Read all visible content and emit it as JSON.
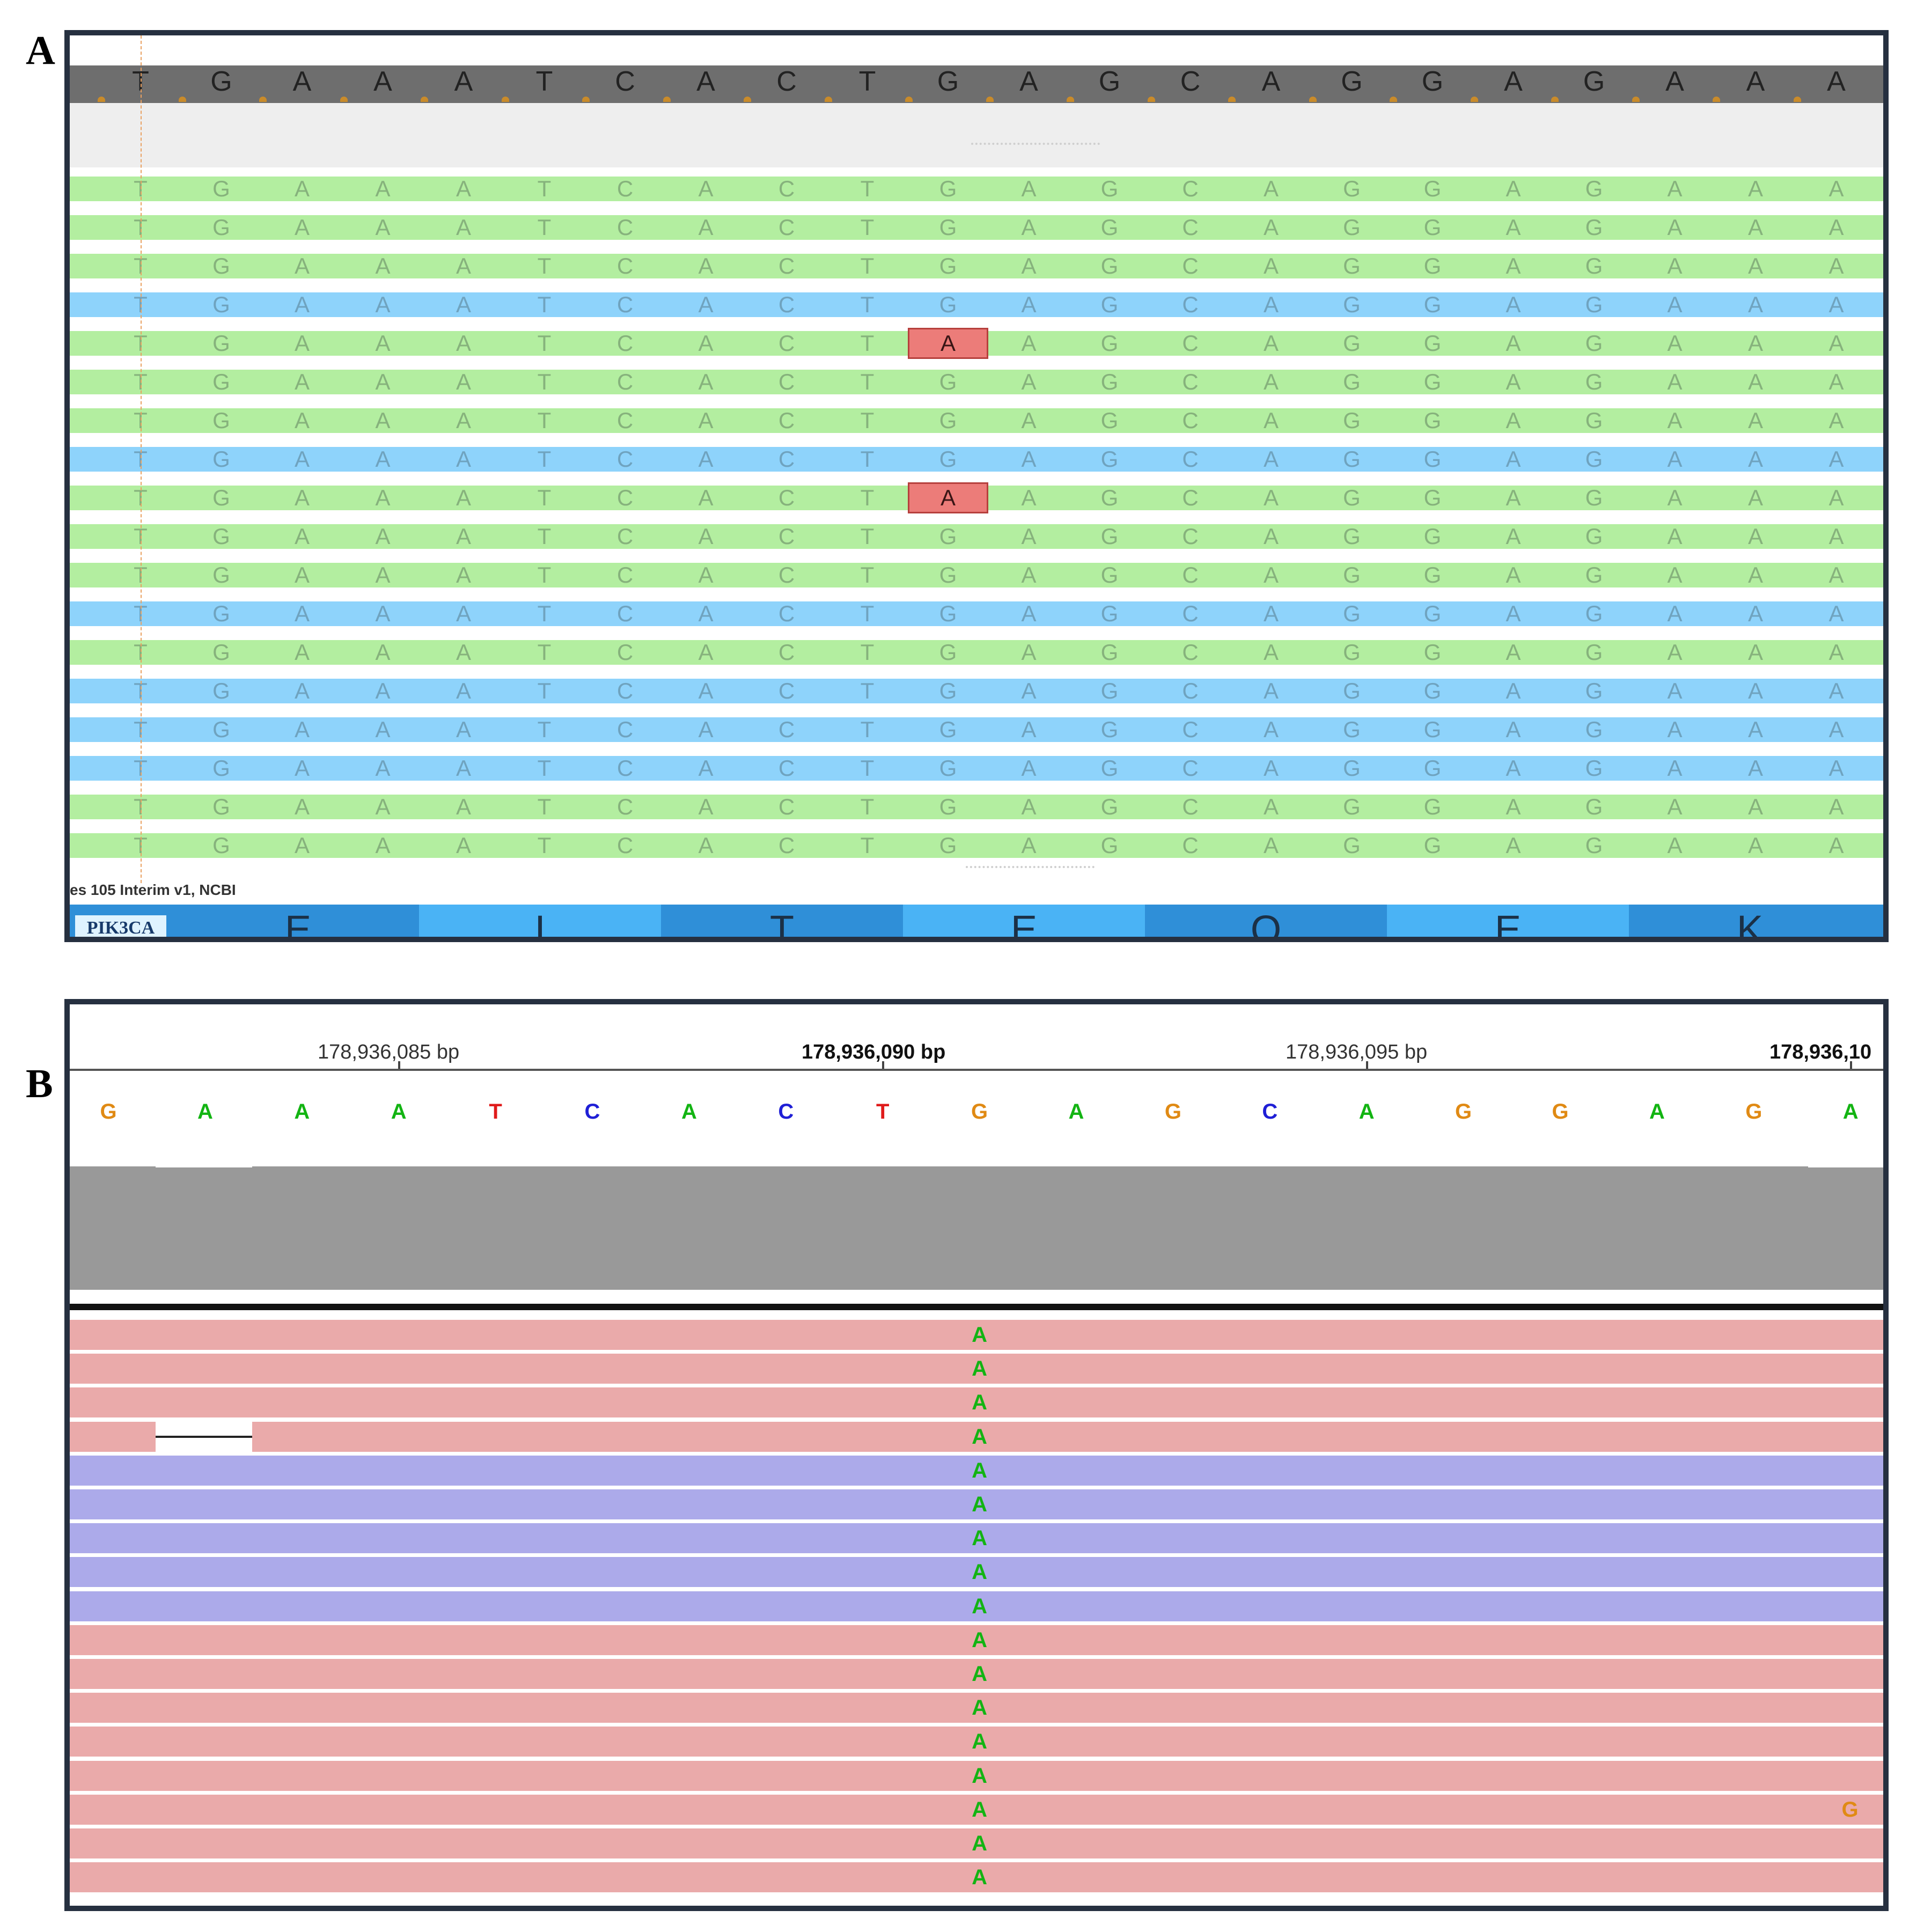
{
  "panel_a": {
    "letter": "A",
    "reference_bases": [
      "T",
      "G",
      "A",
      "A",
      "A",
      "T",
      "C",
      "A",
      "C",
      "T",
      "G",
      "A",
      "G",
      "C",
      "A",
      "G",
      "G",
      "A",
      "G",
      "A",
      "A",
      "A"
    ],
    "reads": [
      {
        "strand": "forward",
        "color": "green"
      },
      {
        "strand": "forward",
        "color": "green"
      },
      {
        "strand": "forward",
        "color": "green"
      },
      {
        "strand": "reverse",
        "color": "blue"
      },
      {
        "strand": "forward",
        "color": "green",
        "mismatch_index": 10,
        "mismatch_base": "A"
      },
      {
        "strand": "forward",
        "color": "green"
      },
      {
        "strand": "forward",
        "color": "green"
      },
      {
        "strand": "reverse",
        "color": "blue"
      },
      {
        "strand": "forward",
        "color": "green",
        "mismatch_index": 10,
        "mismatch_base": "A"
      },
      {
        "strand": "forward",
        "color": "green"
      },
      {
        "strand": "forward",
        "color": "green"
      },
      {
        "strand": "reverse",
        "color": "blue"
      },
      {
        "strand": "forward",
        "color": "green"
      },
      {
        "strand": "reverse",
        "color": "blue"
      },
      {
        "strand": "reverse",
        "color": "blue"
      },
      {
        "strand": "reverse",
        "color": "blue"
      },
      {
        "strand": "forward",
        "color": "green"
      },
      {
        "strand": "forward",
        "color": "green"
      }
    ],
    "annotation_track_label": "es 105 Interim v1, NCBI",
    "gene_name": "PIK3CA",
    "amino_acids": [
      "E",
      "I",
      "T",
      "E",
      "Q",
      "E",
      "K"
    ],
    "colors": {
      "forward": "#b3eea0",
      "reverse": "#8ed3fb",
      "mismatch": "#ec7c79",
      "base_text": "#8aa08a"
    }
  },
  "panel_b": {
    "letter": "B",
    "ticks": [
      {
        "label": "178,936,085 bp",
        "bold": false
      },
      {
        "label": "178,936,090 bp",
        "bold": true
      },
      {
        "label": "178,936,095 bp",
        "bold": false
      },
      {
        "label": "178,936,10",
        "bold": true
      }
    ],
    "reference_bases": [
      "G",
      "A",
      "A",
      "A",
      "T",
      "C",
      "A",
      "C",
      "T",
      "G",
      "A",
      "G",
      "C",
      "A",
      "G",
      "G",
      "A",
      "G",
      "A"
    ],
    "base_colors": {
      "A": "#13b413",
      "C": "#1f1fd6",
      "G": "#e08a14",
      "T": "#e01b1b"
    },
    "reads": [
      {
        "color": "pink"
      },
      {
        "color": "pink"
      },
      {
        "color": "pink"
      },
      {
        "color": "pink",
        "deletion": true
      },
      {
        "color": "purple"
      },
      {
        "color": "purple"
      },
      {
        "color": "purple"
      },
      {
        "color": "purple"
      },
      {
        "color": "purple"
      },
      {
        "color": "pink"
      },
      {
        "color": "pink"
      },
      {
        "color": "pink"
      },
      {
        "color": "pink"
      },
      {
        "color": "pink"
      },
      {
        "color": "pink",
        "extra_mismatch": "G"
      },
      {
        "color": "pink"
      },
      {
        "color": "pink"
      }
    ],
    "snp_base": "A",
    "snp_index": 9,
    "colors": {
      "pink": "#eaaaaa",
      "purple": "#acaaea",
      "coverage": "#999999"
    }
  }
}
